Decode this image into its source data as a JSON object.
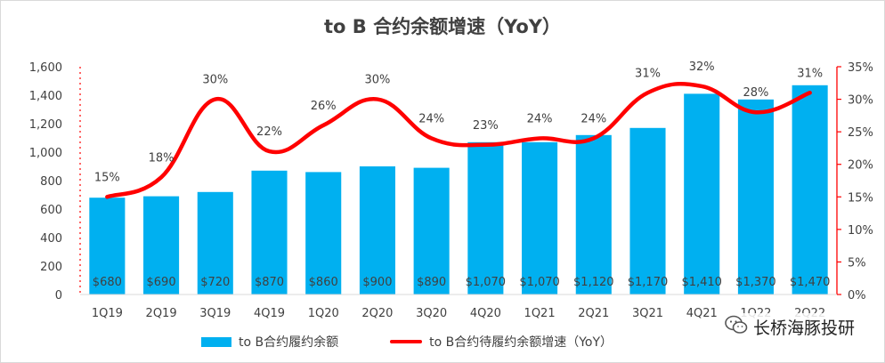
{
  "title": "to B 合约余额增速（YoY）",
  "brand": {
    "name": "长桥海豚投研",
    "icon": "wechat-icon"
  },
  "colors": {
    "bar": "#00B0F0",
    "line": "#FF0000",
    "axis_right": "#FF0000",
    "text": "#404040"
  },
  "chart_data": {
    "type": "bar",
    "categories": [
      "1Q19",
      "2Q19",
      "3Q19",
      "4Q19",
      "1Q20",
      "2Q20",
      "3Q20",
      "4Q20",
      "1Q21",
      "2Q21",
      "3Q21",
      "4Q21",
      "1Q22",
      "2Q22"
    ],
    "series": [
      {
        "name": "to B合约履约余额",
        "type": "bar",
        "axis": "left",
        "values": [
          680,
          690,
          720,
          870,
          860,
          900,
          890,
          1070,
          1070,
          1120,
          1170,
          1410,
          1370,
          1470
        ],
        "labels": [
          "$680",
          "$690",
          "$720",
          "$870",
          "$860",
          "$900",
          "$890",
          "$1,070",
          "$1,070",
          "$1,120",
          "$1,170",
          "$1,410",
          "$1,370",
          "$1,470"
        ]
      },
      {
        "name": "to B合约待履约余额增速（YoY）",
        "type": "line",
        "axis": "right",
        "values": [
          15,
          18,
          30,
          22,
          26,
          30,
          24,
          23,
          24,
          24,
          31,
          32,
          28,
          31
        ],
        "labels": [
          "15%",
          "18%",
          "30%",
          "22%",
          "26%",
          "30%",
          "24%",
          "23%",
          "24%",
          "24%",
          "31%",
          "32%",
          "28%",
          "31%"
        ]
      }
    ],
    "y_left": {
      "ylim": [
        0,
        1600
      ],
      "ticks": [
        0,
        200,
        400,
        600,
        800,
        1000,
        1200,
        1400,
        1600
      ],
      "tick_labels": [
        "0",
        "200",
        "400",
        "600",
        "800",
        "1,000",
        "1,200",
        "1,400",
        "1,600"
      ]
    },
    "y_right": {
      "ylim": [
        0,
        35
      ],
      "ticks": [
        0,
        5,
        10,
        15,
        20,
        25,
        30,
        35
      ],
      "tick_labels": [
        "0%",
        "5%",
        "10%",
        "15%",
        "20%",
        "25%",
        "30%",
        "35%"
      ]
    },
    "grid": false,
    "legend_position": "bottom"
  }
}
